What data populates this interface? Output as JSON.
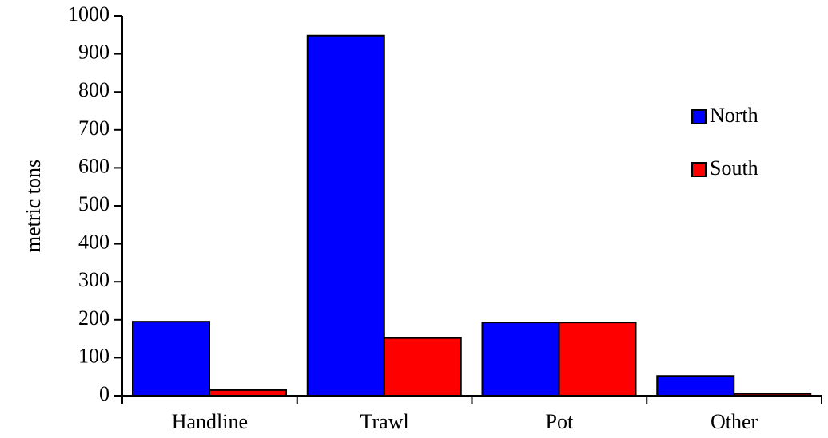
{
  "chart_data": {
    "type": "bar",
    "categories": [
      "Handline",
      "Trawl",
      "Pot",
      "Other"
    ],
    "series": [
      {
        "name": "North",
        "color": "#0000ff",
        "values": [
          195,
          948,
          193,
          52
        ]
      },
      {
        "name": "South",
        "color": "#ff0000",
        "values": [
          15,
          152,
          193,
          5
        ]
      }
    ],
    "title": "",
    "xlabel": "",
    "ylabel": "metric tons",
    "ylim": [
      0,
      1000
    ],
    "yticks": [
      0,
      100,
      200,
      300,
      400,
      500,
      600,
      700,
      800,
      900,
      1000
    ],
    "grid": false,
    "legend_position": "right"
  }
}
